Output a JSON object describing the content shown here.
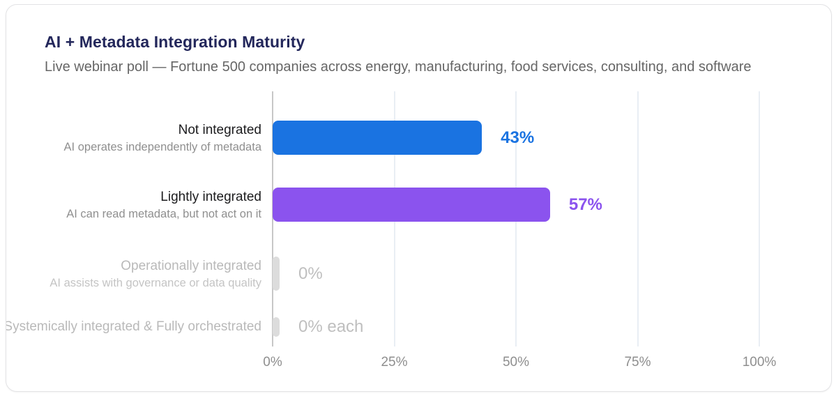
{
  "header": {
    "title": "AI + Metadata Integration Maturity",
    "subtitle": "Live webinar poll — Fortune 500 companies across energy, manufacturing, food services, consulting, and software"
  },
  "chart_data": {
    "type": "bar",
    "orientation": "horizontal",
    "title": "AI + Metadata Integration Maturity",
    "subtitle": "Live webinar poll — Fortune 500 companies across energy, manufacturing, food services, consulting, and software",
    "xlim": [
      0,
      100
    ],
    "x_tick_labels": [
      "0%",
      "25%",
      "50%",
      "75%",
      "100%"
    ],
    "grid": "vertical-light",
    "rows": [
      {
        "category": "Not integrated",
        "description": "AI operates independently of metadata",
        "value": 43,
        "value_label": "43%",
        "bar_color": "#1a73e1",
        "value_color": "#1a73e1"
      },
      {
        "category": "Lightly integrated",
        "description": "AI can read metadata, but not act on it",
        "value": 57,
        "value_label": "57%",
        "bar_color": "#8b53ee",
        "value_color": "#8b53ee"
      },
      {
        "category": "Operationally integrated",
        "description": "AI assists with governance or data quality",
        "value": 0,
        "value_label": "0%",
        "bar_color": "#dcdcdc",
        "value_color": "#bfbfbf"
      },
      {
        "category": "Systemically integrated & Fully orchestrated",
        "description": "",
        "value": 0,
        "value_label": "0% each",
        "bar_color": "#dcdcdc",
        "value_color": "#bfbfbf"
      }
    ]
  }
}
